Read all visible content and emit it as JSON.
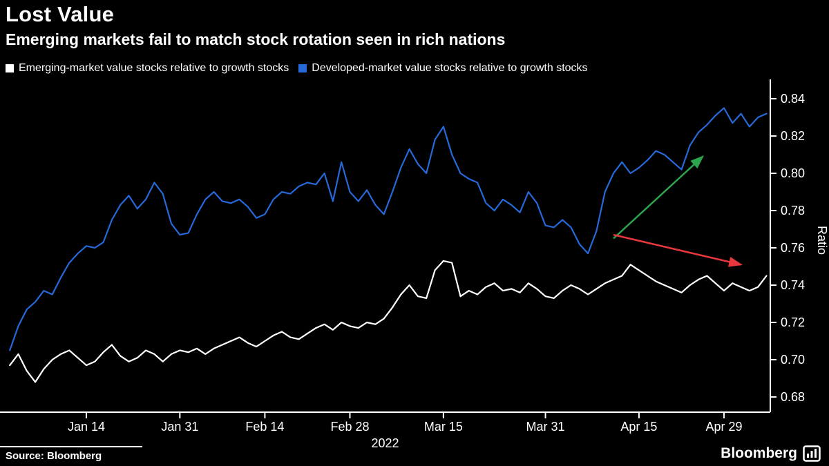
{
  "header": {
    "title": "Lost Value",
    "subtitle": "Emerging markets fail to match stock rotation seen in rich nations"
  },
  "legend": {
    "items": [
      {
        "label": "Emerging-market value stocks relative to growth stocks",
        "color": "#ffffff"
      },
      {
        "label": "Developed-market value stocks relative to growth stocks",
        "color": "#2669d9"
      }
    ]
  },
  "chart_data": {
    "type": "line",
    "title": "Lost Value",
    "subtitle": "Emerging markets fail to match stock rotation seen in rich nations",
    "ylabel": "Ratio",
    "year_label": "2022",
    "background": "#000000",
    "axis_color": "#ffffff",
    "ylim": [
      0.675,
      0.845
    ],
    "yticks": [
      0.68,
      0.7,
      0.72,
      0.74,
      0.76,
      0.78,
      0.8,
      0.82,
      0.84
    ],
    "x_description": "Daily trading days, early January through early May 2022",
    "n_points": 90,
    "xticks": [
      {
        "index": 9,
        "label": "Jan 14"
      },
      {
        "index": 20,
        "label": "Jan 31"
      },
      {
        "index": 30,
        "label": "Feb 14"
      },
      {
        "index": 40,
        "label": "Feb 28"
      },
      {
        "index": 51,
        "label": "Mar 15"
      },
      {
        "index": 63,
        "label": "Mar 31"
      },
      {
        "index": 74,
        "label": "Apr 15"
      },
      {
        "index": 84,
        "label": "Apr 29"
      }
    ],
    "series": [
      {
        "name": "Emerging-market value stocks relative to growth stocks",
        "color": "#ffffff",
        "values": [
          0.697,
          0.703,
          0.694,
          0.688,
          0.695,
          0.7,
          0.703,
          0.705,
          0.701,
          0.697,
          0.699,
          0.704,
          0.708,
          0.702,
          0.699,
          0.701,
          0.705,
          0.703,
          0.699,
          0.703,
          0.705,
          0.704,
          0.706,
          0.703,
          0.706,
          0.708,
          0.71,
          0.712,
          0.709,
          0.707,
          0.71,
          0.713,
          0.715,
          0.712,
          0.711,
          0.714,
          0.717,
          0.719,
          0.716,
          0.72,
          0.718,
          0.717,
          0.72,
          0.719,
          0.722,
          0.728,
          0.735,
          0.74,
          0.734,
          0.733,
          0.748,
          0.753,
          0.752,
          0.734,
          0.737,
          0.735,
          0.739,
          0.741,
          0.737,
          0.738,
          0.736,
          0.741,
          0.738,
          0.734,
          0.733,
          0.737,
          0.74,
          0.738,
          0.735,
          0.738,
          0.741,
          0.743,
          0.745,
          0.751,
          0.748,
          0.745,
          0.742,
          0.74,
          0.738,
          0.736,
          0.74,
          0.743,
          0.745,
          0.741,
          0.737,
          0.741,
          0.739,
          0.737,
          0.739,
          0.745
        ]
      },
      {
        "name": "Developed-market value stocks relative to growth stocks",
        "color": "#2669d9",
        "values": [
          0.705,
          0.718,
          0.727,
          0.731,
          0.737,
          0.735,
          0.744,
          0.752,
          0.757,
          0.761,
          0.76,
          0.763,
          0.775,
          0.783,
          0.788,
          0.781,
          0.786,
          0.795,
          0.789,
          0.773,
          0.767,
          0.768,
          0.778,
          0.786,
          0.79,
          0.785,
          0.784,
          0.786,
          0.782,
          0.776,
          0.778,
          0.786,
          0.79,
          0.789,
          0.793,
          0.795,
          0.794,
          0.8,
          0.785,
          0.806,
          0.79,
          0.785,
          0.791,
          0.783,
          0.778,
          0.79,
          0.803,
          0.813,
          0.805,
          0.8,
          0.818,
          0.825,
          0.81,
          0.8,
          0.797,
          0.795,
          0.784,
          0.78,
          0.786,
          0.783,
          0.779,
          0.79,
          0.784,
          0.772,
          0.771,
          0.775,
          0.771,
          0.762,
          0.757,
          0.769,
          0.79,
          0.8,
          0.806,
          0.8,
          0.803,
          0.807,
          0.812,
          0.81,
          0.806,
          0.802,
          0.815,
          0.822,
          0.826,
          0.831,
          0.835,
          0.827,
          0.832,
          0.825,
          0.83,
          0.832
        ]
      }
    ],
    "annotations": [
      {
        "type": "arrow",
        "name": "developed-up-arrow",
        "color": "#2da44e",
        "from": {
          "x": 71,
          "y": 0.765
        },
        "to": {
          "x": 81.5,
          "y": 0.809
        }
      },
      {
        "type": "arrow",
        "name": "emerging-flat-arrow",
        "color": "#e8383d",
        "from": {
          "x": 71,
          "y": 0.767
        },
        "to": {
          "x": 86,
          "y": 0.751
        }
      }
    ],
    "legend_position": "top"
  },
  "footer": {
    "source": "Source: Bloomberg",
    "brand": "Bloomberg",
    "brand_icon": "bar-chart-icon"
  }
}
